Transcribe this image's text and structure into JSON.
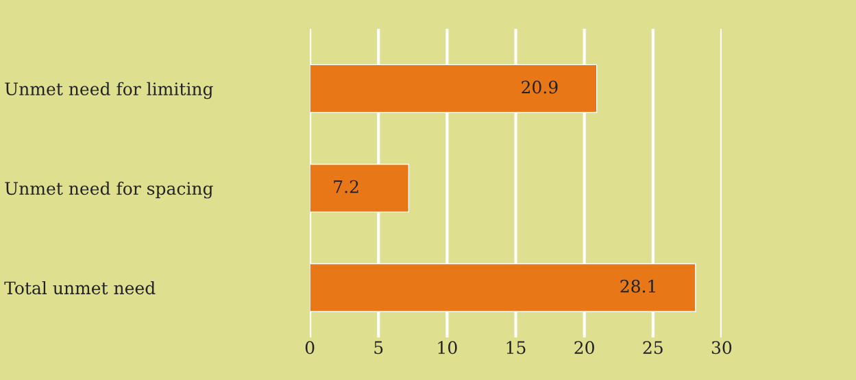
{
  "chart_data": {
    "type": "bar",
    "orientation": "horizontal",
    "categories": [
      "Unmet need for limiting",
      "Unmet need for spacing",
      "Total unmet need"
    ],
    "values": [
      20.9,
      7.2,
      28.1
    ],
    "color": "#e87717",
    "xlim": [
      0,
      30
    ],
    "xticks": [
      0,
      5,
      10,
      15,
      20,
      25,
      30
    ],
    "grid": "x",
    "data_labels": true
  }
}
